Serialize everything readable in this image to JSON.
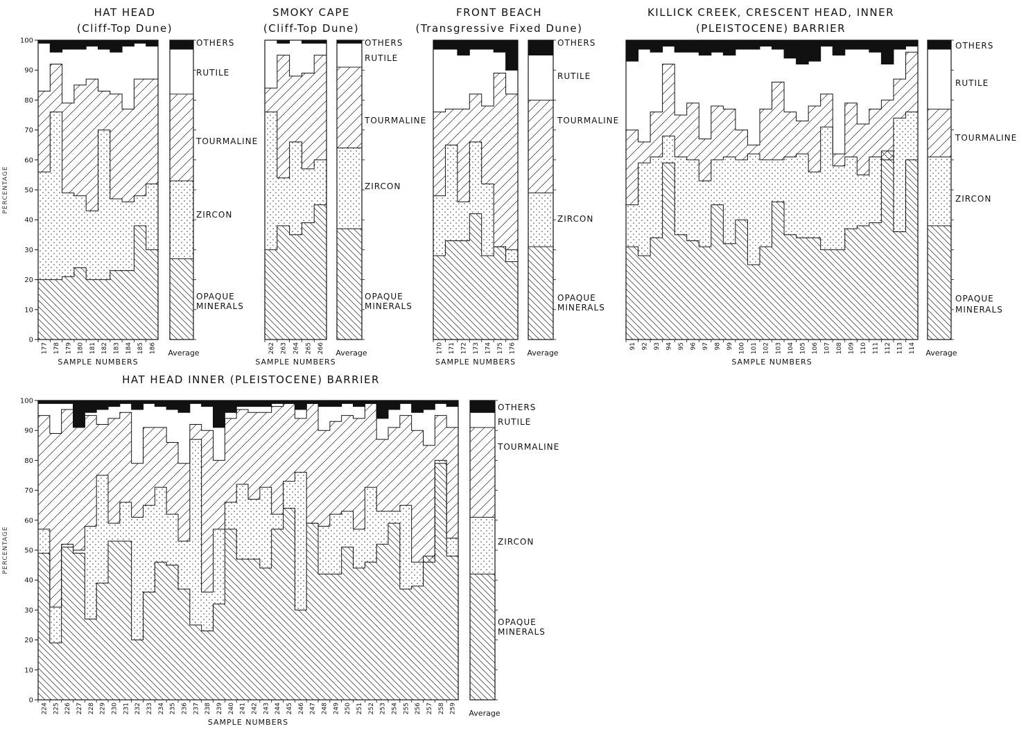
{
  "chart_data": [
    {
      "type": "bar",
      "title": "HAT HEAD",
      "subtitle": "(Cliff-Top Dune)",
      "xlabel": "SAMPLE NUMBERS",
      "ylabel": "PERCENTAGE",
      "ylim": [
        0,
        100
      ],
      "yticks": [
        0,
        10,
        20,
        30,
        40,
        50,
        60,
        70,
        80,
        90,
        100
      ],
      "categories": [
        "177",
        "178",
        "179",
        "180",
        "181",
        "182",
        "183",
        "184",
        "185",
        "186"
      ],
      "layers": [
        "OTHERS",
        "RUTILE",
        "TOURMALINE",
        "ZIRCON",
        "OPAQUE MINERALS"
      ],
      "cumulative_tops": {
        "opaque": [
          20,
          20,
          21,
          24,
          20,
          20,
          23,
          23,
          38,
          30
        ],
        "zircon": [
          56,
          76,
          49,
          48,
          43,
          70,
          47,
          46,
          48,
          52
        ],
        "tourmaline": [
          83,
          92,
          79,
          85,
          87,
          83,
          82,
          77,
          87,
          87
        ],
        "rutile": [
          99,
          96,
          97,
          97,
          98,
          97,
          96,
          98,
          99,
          98
        ]
      },
      "average": {
        "label": "Average",
        "opaque": 27,
        "zircon": 53,
        "tourmaline": 82,
        "rutile": 97
      }
    },
    {
      "type": "bar",
      "title": "SMOKY CAPE",
      "subtitle": "(Cliff-Top Dune)",
      "xlabel": "SAMPLE NUMBERS",
      "ylabel": "",
      "ylim": [
        0,
        100
      ],
      "categories": [
        "262",
        "263",
        "264",
        "265",
        "266"
      ],
      "layers": [
        "OTHERS",
        "RUTILE",
        "TOURMALINE",
        "ZIRCON",
        "OPAQUE MINERALS"
      ],
      "cumulative_tops": {
        "opaque": [
          30,
          38,
          35,
          39,
          45
        ],
        "zircon": [
          76,
          54,
          66,
          57,
          60
        ],
        "tourmaline": [
          84,
          95,
          88,
          89,
          95
        ],
        "rutile": [
          100,
          99,
          100,
          99,
          99
        ]
      },
      "average": {
        "label": "Average",
        "opaque": 37,
        "zircon": 64,
        "tourmaline": 91,
        "rutile": 99
      }
    },
    {
      "type": "bar",
      "title": "FRONT BEACH",
      "subtitle": "(Transgressive Fixed Dune)",
      "xlabel": "SAMPLE NUMBERS",
      "ylabel": "",
      "ylim": [
        0,
        100
      ],
      "categories": [
        "170",
        "171",
        "172",
        "173",
        "174",
        "175",
        "176"
      ],
      "layers": [
        "OTHERS",
        "RUTILE",
        "TOURMALINE",
        "ZIRCON",
        "OPAQUE MINERALS"
      ],
      "cumulative_tops": {
        "opaque": [
          28,
          33,
          33,
          42,
          28,
          31,
          26
        ],
        "zircon": [
          48,
          65,
          46,
          66,
          52,
          31,
          30
        ],
        "tourmaline": [
          76,
          77,
          77,
          82,
          78,
          89,
          82
        ],
        "rutile": [
          97,
          97,
          95,
          97,
          97,
          96,
          90
        ]
      },
      "average": {
        "label": "Average",
        "opaque": 31,
        "zircon": 49,
        "tourmaline": 80,
        "rutile": 95
      }
    },
    {
      "type": "bar",
      "title": "KILLICK CREEK, CRESCENT HEAD, INNER",
      "subtitle": "(PLEISTOCENE) BARRIER",
      "xlabel": "SAMPLE NUMBERS",
      "ylabel": "",
      "ylim": [
        0,
        100
      ],
      "categories": [
        "91",
        "92",
        "93",
        "94",
        "95",
        "96",
        "97",
        "98",
        "99",
        "100",
        "101",
        "102",
        "103",
        "104",
        "105",
        "106",
        "107",
        "108",
        "109",
        "110",
        "111",
        "112",
        "113",
        "114"
      ],
      "layers": [
        "OTHERS",
        "RUTILE",
        "TOURMALINE",
        "ZIRCON",
        "OPAQUE MINERALS"
      ],
      "cumulative_tops": {
        "opaque": [
          31,
          28,
          34,
          59,
          35,
          33,
          31,
          45,
          32,
          40,
          25,
          31,
          46,
          35,
          34,
          34,
          30,
          30,
          37,
          38,
          39,
          63,
          36,
          60
        ],
        "zircon": [
          45,
          59,
          61,
          68,
          61,
          60,
          53,
          60,
          61,
          60,
          62,
          60,
          60,
          61,
          62,
          56,
          71,
          58,
          61,
          55,
          61,
          60,
          74,
          76
        ],
        "tourmaline": [
          70,
          66,
          76,
          92,
          75,
          79,
          67,
          78,
          77,
          70,
          65,
          77,
          86,
          76,
          73,
          78,
          82,
          62,
          79,
          72,
          77,
          80,
          87,
          96
        ],
        "rutile": [
          93,
          97,
          96,
          98,
          96,
          96,
          95,
          96,
          95,
          97,
          97,
          98,
          97,
          94,
          92,
          93,
          98,
          95,
          97,
          97,
          96,
          92,
          97,
          98
        ]
      },
      "average": {
        "label": "Average",
        "opaque": 38,
        "zircon": 61,
        "tourmaline": 77,
        "rutile": 97
      }
    },
    {
      "type": "bar",
      "title": "HAT HEAD INNER (PLEISTOCENE) BARRIER",
      "subtitle": "",
      "xlabel": "SAMPLE NUMBERS",
      "ylabel": "PERCENTAGE",
      "ylim": [
        0,
        100
      ],
      "yticks": [
        0,
        10,
        20,
        30,
        40,
        50,
        60,
        70,
        80,
        90,
        100
      ],
      "categories": [
        "224",
        "225",
        "226",
        "227",
        "228",
        "229",
        "230",
        "231",
        "232",
        "233",
        "234",
        "235",
        "236",
        "237",
        "238",
        "239",
        "240",
        "241",
        "242",
        "243",
        "244",
        "245",
        "246",
        "247",
        "248",
        "249",
        "250",
        "251",
        "252",
        "253",
        "254",
        "255",
        "256",
        "257",
        "258",
        "259"
      ],
      "layers": [
        "OTHERS",
        "RUTILE",
        "TOURMALINE",
        "ZIRCON",
        "OPAQUE MINERALS"
      ],
      "cumulative_tops": {
        "opaque": [
          49,
          19,
          51,
          49,
          27,
          39,
          53,
          53,
          20,
          36,
          46,
          45,
          37,
          25,
          23,
          32,
          57,
          47,
          47,
          44,
          57,
          64,
          30,
          59,
          42,
          42,
          51,
          44,
          46,
          52,
          59,
          37,
          38,
          48,
          79,
          48
        ],
        "zircon": [
          57,
          31,
          52,
          50,
          58,
          75,
          59,
          66,
          61,
          65,
          71,
          62,
          53,
          87,
          36,
          57,
          66,
          72,
          67,
          71,
          62,
          73,
          76,
          59,
          58,
          62,
          63,
          57,
          71,
          63,
          63,
          65,
          46,
          46,
          80,
          54
        ],
        "tourmaline": [
          95,
          89,
          97,
          92,
          95,
          92,
          94,
          96,
          79,
          91,
          91,
          86,
          79,
          92,
          90,
          80,
          94,
          97,
          96,
          96,
          98,
          99,
          94,
          99,
          90,
          93,
          95,
          94,
          99,
          87,
          91,
          95,
          90,
          85,
          95,
          91
        ],
        "rutile": [
          99,
          99,
          99,
          91,
          96,
          97,
          98,
          99,
          97,
          99,
          98,
          97,
          96,
          99,
          98,
          91,
          96,
          98,
          98,
          98,
          99,
          99,
          97,
          99,
          98,
          98,
          99,
          98,
          99,
          94,
          97,
          99,
          96,
          97,
          99,
          98
        ]
      },
      "average": {
        "label": "Average",
        "opaque": 42,
        "zircon": 61,
        "tourmaline": 91,
        "rutile": 96
      }
    }
  ]
}
